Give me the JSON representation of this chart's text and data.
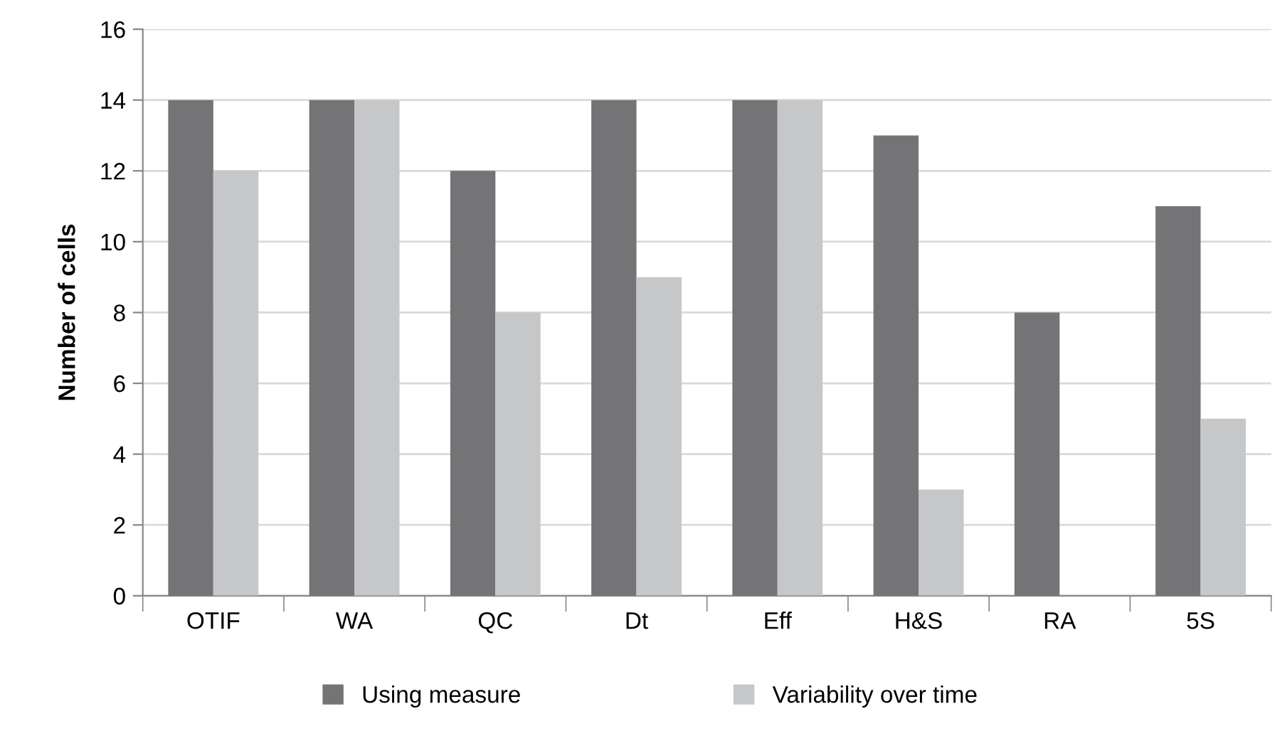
{
  "chart_data": {
    "type": "bar",
    "ylabel": "Number of cells",
    "categories": [
      "OTIF",
      "WA",
      "QC",
      "Dt",
      "Eff",
      "H&S",
      "RA",
      "5S"
    ],
    "series": [
      {
        "name": "Using measure",
        "color": "#747476",
        "values": [
          14,
          14,
          12,
          14,
          14,
          13,
          8,
          11
        ]
      },
      {
        "name": "Variability over time",
        "color": "#c6c7c9",
        "values": [
          12,
          14,
          8,
          9,
          14,
          3,
          0,
          5
        ]
      }
    ],
    "ylim": [
      0,
      16
    ],
    "yticks": [
      0,
      2,
      4,
      6,
      8,
      10,
      12,
      14,
      16
    ],
    "grid": "y",
    "legend": "bottom"
  }
}
